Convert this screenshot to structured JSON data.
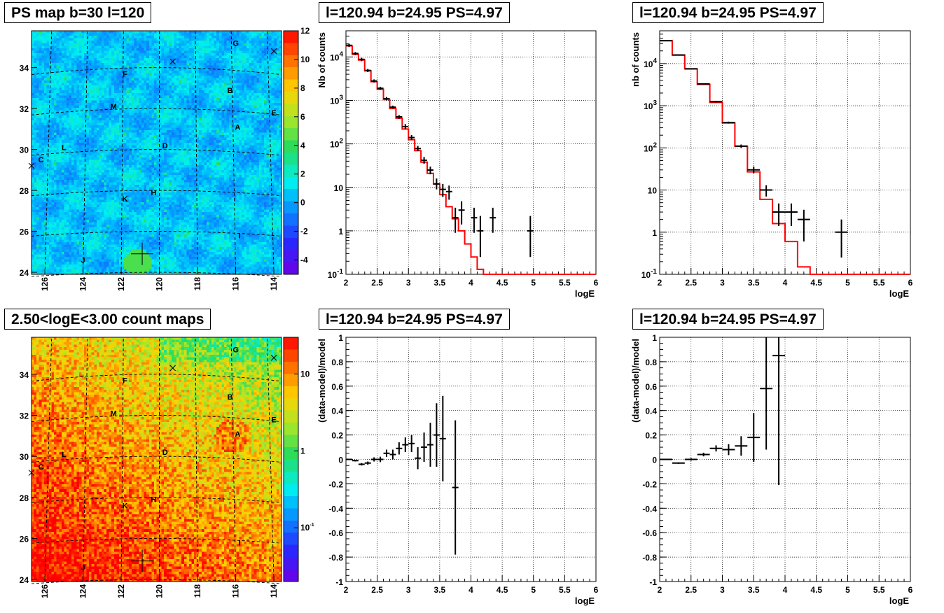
{
  "panels": {
    "map1": {
      "title": "PS map b=30 l=120"
    },
    "spec1": {
      "title": "l=120.94 b=24.95 PS=4.97"
    },
    "spec2": {
      "title": "l=120.94 b=24.95 PS=4.97"
    },
    "map2": {
      "title": "2.50<logE<3.00 count maps"
    },
    "res1": {
      "title": "l=120.94 b=24.95 PS=4.97"
    },
    "res2": {
      "title": "l=120.94 b=24.95 PS=4.97"
    }
  },
  "colors": {
    "model_line": "#ff0000",
    "data_marker": "#000000",
    "grid": "#000000"
  },
  "chart_data": [
    {
      "id": "map1",
      "type": "heatmap",
      "title": "PS map b=30 l=120",
      "x_ticks": [
        "126",
        "124",
        "122",
        "120",
        "118",
        "116",
        "114"
      ],
      "y_ticks": [
        "24",
        "26",
        "28",
        "30",
        "32",
        "34"
      ],
      "xlim": [
        126.7,
        113.6
      ],
      "ylim": [
        23.9,
        35.8
      ],
      "colorbar_ticks": [
        "12",
        "10",
        "8",
        "6",
        "4",
        "2",
        "0",
        "-2",
        "-4"
      ],
      "colorbar_range": [
        -5,
        12
      ],
      "labels": [
        {
          "text": "G",
          "l": 116.0,
          "b": 35.2
        },
        {
          "text": "F",
          "l": 121.8,
          "b": 33.7
        },
        {
          "text": "B",
          "l": 116.3,
          "b": 32.9
        },
        {
          "text": "M",
          "l": 122.4,
          "b": 32.1
        },
        {
          "text": "E",
          "l": 114.0,
          "b": 31.8
        },
        {
          "text": "A",
          "l": 115.9,
          "b": 31.1
        },
        {
          "text": "D",
          "l": 119.7,
          "b": 30.2
        },
        {
          "text": "L",
          "l": 125.0,
          "b": 30.1
        },
        {
          "text": "C",
          "l": 126.2,
          "b": 29.5
        },
        {
          "text": "H",
          "l": 120.3,
          "b": 27.9
        },
        {
          "text": "K",
          "l": 121.8,
          "b": 27.6
        },
        {
          "text": "I",
          "l": 115.8,
          "b": 25.8
        },
        {
          "text": "J",
          "l": 124.0,
          "b": 24.6
        }
      ],
      "markers": [
        {
          "symbol": "x",
          "l": 119.3,
          "b": 34.3
        },
        {
          "symbol": "x",
          "l": 114.0,
          "b": 34.8
        },
        {
          "symbol": "x",
          "l": 126.7,
          "b": 29.2
        },
        {
          "symbol": "+",
          "l": 120.9,
          "b": 24.9
        }
      ]
    },
    {
      "id": "spec1",
      "type": "line",
      "title": "l=120.94 b=24.95 PS=4.97",
      "xlabel": "logE",
      "ylabel": "Nb of counts",
      "xlim": [
        2,
        6
      ],
      "ylim": [
        0.1,
        40000
      ],
      "yscale": "log",
      "grid": true,
      "x_ticks": [
        "2",
        "2.5",
        "3",
        "3.5",
        "4",
        "4.5",
        "5",
        "5.5",
        "6"
      ],
      "y_ticks": [
        "10^-1",
        "1",
        "10",
        "10^2",
        "10^3",
        "10^4"
      ],
      "series": [
        {
          "style": "step",
          "bins": [
            2,
            2.1,
            2.2,
            2.3,
            2.4,
            2.5,
            2.6,
            2.7,
            2.8,
            2.9,
            3.0,
            3.1,
            3.2,
            3.3,
            3.4,
            3.5,
            3.6,
            3.7,
            3.8,
            3.9,
            4.0,
            4.1,
            4.2,
            6.0
          ],
          "values": [
            18000,
            11500,
            8500,
            4800,
            2700,
            1800,
            1050,
            650,
            390,
            220,
            125,
            70,
            38,
            21,
            12,
            6.8,
            3.6,
            1.9,
            1.0,
            0.5,
            0.25,
            0.13,
            0.02
          ]
        },
        {
          "style": "errorbar",
          "x": [
            2.05,
            2.15,
            2.25,
            2.35,
            2.45,
            2.55,
            2.65,
            2.75,
            2.85,
            2.95,
            3.05,
            3.15,
            3.25,
            3.35,
            3.45,
            3.55,
            3.65,
            3.75,
            3.85,
            4.05,
            4.15,
            4.35,
            4.95
          ],
          "y": [
            18500,
            12000,
            8800,
            4900,
            2800,
            1900,
            1100,
            700,
            420,
            250,
            140,
            78,
            42,
            25,
            12,
            9,
            8,
            2,
            3,
            2,
            1,
            2,
            1
          ],
          "xerr": 0.05,
          "ylo": [
            17000,
            11000,
            8000,
            4500,
            2600,
            1750,
            1000,
            650,
            380,
            220,
            125,
            68,
            35,
            20,
            9,
            6,
            5.2,
            0.9,
            1.4,
            0.9,
            0.25,
            0.9,
            0.25
          ],
          "yhi": [
            20000,
            13000,
            9600,
            5300,
            3050,
            2050,
            1200,
            760,
            460,
            285,
            160,
            90,
            50,
            30,
            16,
            12,
            11,
            3.4,
            4.8,
            3.4,
            2.2,
            3.4,
            2.2
          ]
        }
      ]
    },
    {
      "id": "spec2",
      "type": "line",
      "title": "l=120.94 b=24.95 PS=4.97",
      "xlabel": "logE",
      "ylabel": "nb of counts",
      "xlim": [
        2,
        6
      ],
      "ylim": [
        0.1,
        60000
      ],
      "yscale": "log",
      "grid": true,
      "x_ticks": [
        "2",
        "2.5",
        "3",
        "3.5",
        "4",
        "4.5",
        "5",
        "5.5",
        "6"
      ],
      "y_ticks": [
        "10^-1",
        "1",
        "10",
        "10^2",
        "10^3",
        "10^4"
      ],
      "series": [
        {
          "style": "step",
          "bins": [
            2,
            2.2,
            2.4,
            2.6,
            2.8,
            3.0,
            3.2,
            3.4,
            3.6,
            3.8,
            4.0,
            4.2,
            4.4,
            6.0
          ],
          "values": [
            35000,
            16000,
            7500,
            3200,
            1200,
            390,
            110,
            27,
            6,
            1.6,
            0.6,
            0.15,
            0.1
          ]
        },
        {
          "style": "errorbar",
          "x": [
            2.1,
            2.3,
            2.5,
            2.7,
            2.9,
            3.1,
            3.3,
            3.5,
            3.7,
            3.9,
            4.1,
            4.3,
            4.9
          ],
          "y": [
            35000,
            16000,
            7500,
            3300,
            1250,
            400,
            110,
            30,
            10,
            3,
            3,
            2,
            1
          ],
          "xerr": 0.1,
          "ylo": [
            34000,
            15500,
            7300,
            3200,
            1200,
            380,
            100,
            25,
            7,
            1.4,
            1.4,
            0.6,
            0.25
          ],
          "yhi": [
            36000,
            16500,
            7700,
            3400,
            1300,
            420,
            120,
            36,
            13,
            4.8,
            4.8,
            3.4,
            2
          ]
        }
      ]
    },
    {
      "id": "map2",
      "type": "heatmap",
      "title": "2.50<logE<3.00 count maps",
      "x_ticks": [
        "126",
        "124",
        "122",
        "120",
        "118",
        "116",
        "114"
      ],
      "y_ticks": [
        "24",
        "26",
        "28",
        "30",
        "32",
        "34"
      ],
      "xlim": [
        126.7,
        113.6
      ],
      "ylim": [
        23.9,
        35.8
      ],
      "colorbar_ticks": [
        "10",
        "1",
        "10^-1"
      ],
      "colorbar_range": [
        0.02,
        30
      ],
      "colorbar_scale": "log",
      "labels": [
        {
          "text": "G",
          "l": 116.0,
          "b": 35.2
        },
        {
          "text": "F",
          "l": 121.8,
          "b": 33.7
        },
        {
          "text": "B",
          "l": 116.3,
          "b": 32.9
        },
        {
          "text": "M",
          "l": 122.4,
          "b": 32.1
        },
        {
          "text": "E",
          "l": 114.0,
          "b": 31.8
        },
        {
          "text": "A",
          "l": 115.9,
          "b": 31.1
        },
        {
          "text": "D",
          "l": 119.7,
          "b": 30.2
        },
        {
          "text": "L",
          "l": 125.0,
          "b": 30.1
        },
        {
          "text": "C",
          "l": 126.2,
          "b": 29.5
        },
        {
          "text": "H",
          "l": 120.3,
          "b": 27.9
        },
        {
          "text": "K",
          "l": 121.8,
          "b": 27.6
        },
        {
          "text": "I",
          "l": 115.8,
          "b": 25.8
        },
        {
          "text": "J",
          "l": 124.0,
          "b": 24.6
        }
      ],
      "markers": [
        {
          "symbol": "x",
          "l": 119.3,
          "b": 34.3
        },
        {
          "symbol": "x",
          "l": 114.0,
          "b": 34.8
        },
        {
          "symbol": "x",
          "l": 126.7,
          "b": 29.2
        },
        {
          "symbol": "+",
          "l": 120.9,
          "b": 24.9
        }
      ]
    },
    {
      "id": "res1",
      "type": "scatter",
      "title": "l=120.94 b=24.95 PS=4.97",
      "xlabel": "logE",
      "ylabel": "(data-model)/model",
      "xlim": [
        2,
        6
      ],
      "ylim": [
        -1,
        1
      ],
      "grid": true,
      "x_ticks": [
        "2",
        "2.5",
        "3",
        "3.5",
        "4",
        "4.5",
        "5",
        "5.5",
        "6"
      ],
      "y_ticks": [
        "-1",
        "-0.8",
        "-0.6",
        "-0.4",
        "-0.2",
        "0",
        "0.2",
        "0.4",
        "0.6",
        "0.8",
        "1"
      ],
      "series": [
        {
          "style": "errorbar",
          "x": [
            2.05,
            2.15,
            2.25,
            2.35,
            2.45,
            2.55,
            2.65,
            2.75,
            2.85,
            2.95,
            3.05,
            3.15,
            3.25,
            3.35,
            3.45,
            3.55,
            3.75
          ],
          "y": [
            0,
            -0.01,
            -0.04,
            -0.03,
            0,
            0,
            0.05,
            0.04,
            0.09,
            0.12,
            0.13,
            0.01,
            0.1,
            0.12,
            0.2,
            0.17,
            -0.23
          ],
          "xerr": 0.05,
          "yerr": [
            0.005,
            0.007,
            0.01,
            0.013,
            0.017,
            0.022,
            0.03,
            0.04,
            0.05,
            0.06,
            0.07,
            0.09,
            0.12,
            0.18,
            0.26,
            0.35,
            0.55
          ]
        }
      ]
    },
    {
      "id": "res2",
      "type": "scatter",
      "title": "l=120.94 b=24.95 PS=4.97",
      "xlabel": "logE",
      "ylabel": "(data-model)/model",
      "xlim": [
        2,
        6
      ],
      "ylim": [
        -1,
        1
      ],
      "grid": true,
      "x_ticks": [
        "2",
        "2.5",
        "3",
        "3.5",
        "4",
        "4.5",
        "5",
        "5.5",
        "6"
      ],
      "y_ticks": [
        "-1",
        "-0.8",
        "-0.6",
        "-0.4",
        "-0.2",
        "0",
        "0.2",
        "0.4",
        "0.6",
        "0.8",
        "1"
      ],
      "series": [
        {
          "style": "errorbar",
          "x": [
            2.1,
            2.3,
            2.5,
            2.7,
            2.9,
            3.1,
            3.3,
            3.5,
            3.7,
            3.9
          ],
          "y": [
            0,
            -0.03,
            0,
            0.04,
            0.09,
            0.08,
            0.11,
            0.18,
            0.58,
            0.85
          ],
          "xerr": 0.1,
          "yerr": [
            0.004,
            0.006,
            0.01,
            0.015,
            0.025,
            0.045,
            0.08,
            0.2,
            0.5,
            1.06
          ]
        }
      ]
    }
  ]
}
